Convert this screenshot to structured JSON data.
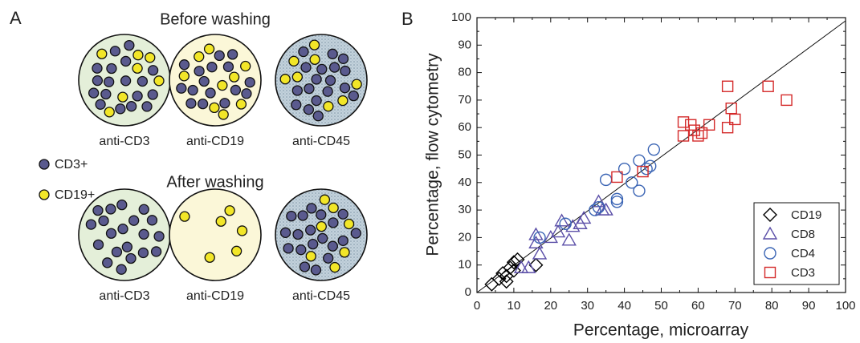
{
  "panel_a": {
    "label": "A",
    "before_title": "Before washing",
    "after_title": "After washing",
    "before_labels": [
      "anti-CD3",
      "anti-CD19",
      "anti-CD45"
    ],
    "after_labels": [
      "anti-CD3",
      "anti-CD19",
      "anti-CD45"
    ],
    "legend": [
      "CD3+",
      "CD19+"
    ]
  },
  "chart_data": {
    "type": "scatter",
    "panel_label": "B",
    "xlabel": "Percentage, microarray",
    "ylabel": "Percentage, flow cytometry",
    "xlim": [
      0,
      100
    ],
    "ylim": [
      0,
      100
    ],
    "xticks": [
      0,
      10,
      20,
      30,
      40,
      50,
      60,
      70,
      80,
      90,
      100
    ],
    "yticks": [
      0,
      10,
      20,
      30,
      40,
      50,
      60,
      70,
      80,
      90,
      100
    ],
    "legend_position": "lower right",
    "series": [
      {
        "name": "CD19",
        "color": "#000000",
        "marker": "diamond",
        "x": [
          4,
          6,
          7,
          8,
          9,
          10,
          11,
          10,
          16,
          8
        ],
        "y": [
          3,
          5,
          7,
          6,
          9,
          11,
          12,
          8,
          10,
          4
        ]
      },
      {
        "name": "CD8",
        "color": "#5b4fa8",
        "marker": "triangle",
        "x": [
          12,
          14,
          16,
          17,
          16,
          20,
          23,
          25,
          26,
          28,
          29,
          33,
          34,
          35,
          22
        ],
        "y": [
          9,
          9,
          21,
          14,
          18,
          20,
          26,
          19,
          24,
          25,
          27,
          33,
          30,
          30,
          22
        ]
      },
      {
        "name": "CD4",
        "color": "#3a64b4",
        "marker": "circle",
        "x": [
          17,
          24,
          32,
          33,
          35,
          38,
          38,
          40,
          42,
          44,
          44,
          46,
          47,
          48
        ],
        "y": [
          20,
          25,
          30,
          31,
          41,
          33,
          34,
          45,
          40,
          37,
          48,
          45,
          46,
          52
        ]
      },
      {
        "name": "CD3",
        "color": "#d42a2a",
        "marker": "square",
        "x": [
          38,
          45,
          56,
          56,
          58,
          59,
          60,
          61,
          63,
          68,
          68,
          69,
          70,
          79,
          84
        ],
        "y": [
          42,
          44,
          62,
          57,
          61,
          59,
          57,
          58,
          61,
          60,
          75,
          67,
          63,
          75,
          70
        ]
      }
    ]
  }
}
